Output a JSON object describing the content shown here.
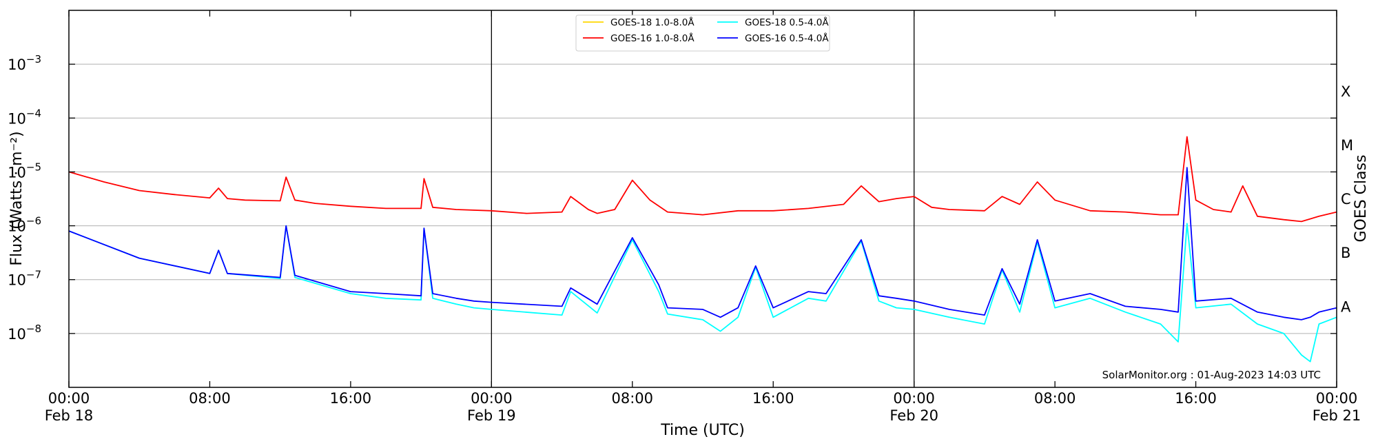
{
  "chart_data": {
    "type": "line",
    "xlabel": "Time (UTC)",
    "ylabel": "Flux (Watts · m⁻²)",
    "y2label": "GOES Class",
    "yscale": "log",
    "ylim": [
      1e-09,
      0.01
    ],
    "xlim": [
      "2023-02-18T00:00",
      "2023-02-21T00:00"
    ],
    "grid": "horizontal at decades",
    "legend_position": "top-center",
    "credit": "SolarMonitor.org : 01-Aug-2023 14:03 UTC",
    "x_ticks": [
      {
        "time": "2023-02-18T00:00",
        "label": "00:00",
        "sublabel": "Feb 18"
      },
      {
        "time": "2023-02-18T08:00",
        "label": "08:00",
        "sublabel": ""
      },
      {
        "time": "2023-02-18T16:00",
        "label": "16:00",
        "sublabel": ""
      },
      {
        "time": "2023-02-19T00:00",
        "label": "00:00",
        "sublabel": "Feb 19"
      },
      {
        "time": "2023-02-19T08:00",
        "label": "08:00",
        "sublabel": ""
      },
      {
        "time": "2023-02-19T16:00",
        "label": "16:00",
        "sublabel": ""
      },
      {
        "time": "2023-02-20T00:00",
        "label": "00:00",
        "sublabel": "Feb 20"
      },
      {
        "time": "2023-02-20T08:00",
        "label": "08:00",
        "sublabel": ""
      },
      {
        "time": "2023-02-20T16:00",
        "label": "16:00",
        "sublabel": ""
      },
      {
        "time": "2023-02-21T00:00",
        "label": "00:00",
        "sublabel": "Feb 21"
      }
    ],
    "y_ticks": [
      {
        "value": 1e-08,
        "base": "10",
        "exp": "−8"
      },
      {
        "value": 1e-07,
        "base": "10",
        "exp": "−7"
      },
      {
        "value": 1e-06,
        "base": "10",
        "exp": "−6"
      },
      {
        "value": 1e-05,
        "base": "10",
        "exp": "−5"
      },
      {
        "value": 0.0001,
        "base": "10",
        "exp": "−4"
      },
      {
        "value": 0.001,
        "base": "10",
        "exp": "−3"
      }
    ],
    "day_boundaries": [
      "2023-02-19T00:00",
      "2023-02-20T00:00"
    ],
    "goes_classes": [
      {
        "label": "A",
        "value": 3.2e-08
      },
      {
        "label": "B",
        "value": 3.2e-07
      },
      {
        "label": "C",
        "value": 3.2e-06
      },
      {
        "label": "M",
        "value": 3.2e-05
      },
      {
        "label": "X",
        "value": 0.00032
      }
    ],
    "series": [
      {
        "name": "GOES-18 1.0-8.0Å",
        "color": "#ffd700",
        "points": []
      },
      {
        "name": "GOES-18 0.5-4.0Å",
        "color": "#00ffff",
        "points": [
          [
            "2023-02-18T00:00",
            8e-07
          ],
          [
            "2023-02-18T04:00",
            2.5e-07
          ],
          [
            "2023-02-18T08:00",
            1.3e-07
          ],
          [
            "2023-02-18T08:30",
            3.5e-07
          ],
          [
            "2023-02-18T09:00",
            1.3e-07
          ],
          [
            "2023-02-18T12:00",
            1.05e-07
          ],
          [
            "2023-02-18T12:20",
            1e-06
          ],
          [
            "2023-02-18T12:50",
            1.1e-07
          ],
          [
            "2023-02-18T16:00",
            5.5e-08
          ],
          [
            "2023-02-18T18:00",
            4.5e-08
          ],
          [
            "2023-02-18T20:00",
            4.2e-08
          ],
          [
            "2023-02-18T20:10",
            9e-07
          ],
          [
            "2023-02-18T20:40",
            4.5e-08
          ],
          [
            "2023-02-18T22:00",
            3.5e-08
          ],
          [
            "2023-02-18T23:00",
            3e-08
          ],
          [
            "2023-02-19T00:00",
            2.8e-08
          ],
          [
            "2023-02-19T04:00",
            2.2e-08
          ],
          [
            "2023-02-19T04:30",
            6e-08
          ],
          [
            "2023-02-19T06:00",
            2.4e-08
          ],
          [
            "2023-02-19T08:00",
            5.5e-07
          ],
          [
            "2023-02-19T09:30",
            6e-08
          ],
          [
            "2023-02-19T10:00",
            2.3e-08
          ],
          [
            "2023-02-19T12:00",
            1.8e-08
          ],
          [
            "2023-02-19T13:00",
            1.1e-08
          ],
          [
            "2023-02-19T14:00",
            2e-08
          ],
          [
            "2023-02-19T15:00",
            1.7e-07
          ],
          [
            "2023-02-19T16:00",
            2e-08
          ],
          [
            "2023-02-19T18:00",
            4.5e-08
          ],
          [
            "2023-02-19T19:00",
            4e-08
          ],
          [
            "2023-02-19T21:00",
            5.2e-07
          ],
          [
            "2023-02-19T22:00",
            4e-08
          ],
          [
            "2023-02-19T23:00",
            3e-08
          ],
          [
            "2023-02-20T00:00",
            2.8e-08
          ],
          [
            "2023-02-20T02:00",
            2e-08
          ],
          [
            "2023-02-20T04:00",
            1.5e-08
          ],
          [
            "2023-02-20T05:00",
            1.5e-07
          ],
          [
            "2023-02-20T06:00",
            2.5e-08
          ],
          [
            "2023-02-20T07:00",
            5e-07
          ],
          [
            "2023-02-20T08:00",
            3e-08
          ],
          [
            "2023-02-20T10:00",
            4.5e-08
          ],
          [
            "2023-02-20T12:00",
            2.5e-08
          ],
          [
            "2023-02-20T14:00",
            1.5e-08
          ],
          [
            "2023-02-20T15:00",
            7e-09
          ],
          [
            "2023-02-20T15:30",
            1.1e-06
          ],
          [
            "2023-02-20T16:00",
            3e-08
          ],
          [
            "2023-02-20T18:00",
            3.5e-08
          ],
          [
            "2023-02-20T19:30",
            1.5e-08
          ],
          [
            "2023-02-20T21:00",
            1e-08
          ],
          [
            "2023-02-20T22:00",
            4e-09
          ],
          [
            "2023-02-20T22:30",
            3e-09
          ],
          [
            "2023-02-20T23:00",
            1.5e-08
          ],
          [
            "2023-02-21T00:00",
            2e-08
          ]
        ]
      },
      {
        "name": "GOES-16 1.0-8.0Å",
        "color": "#ff0000",
        "points": [
          [
            "2023-02-18T00:00",
            1e-05
          ],
          [
            "2023-02-18T02:00",
            6.5e-06
          ],
          [
            "2023-02-18T04:00",
            4.5e-06
          ],
          [
            "2023-02-18T06:00",
            3.8e-06
          ],
          [
            "2023-02-18T08:00",
            3.3e-06
          ],
          [
            "2023-02-18T08:30",
            5e-06
          ],
          [
            "2023-02-18T09:00",
            3.2e-06
          ],
          [
            "2023-02-18T10:00",
            3e-06
          ],
          [
            "2023-02-18T12:00",
            2.9e-06
          ],
          [
            "2023-02-18T12:20",
            8e-06
          ],
          [
            "2023-02-18T12:50",
            3e-06
          ],
          [
            "2023-02-18T14:00",
            2.6e-06
          ],
          [
            "2023-02-18T16:00",
            2.3e-06
          ],
          [
            "2023-02-18T18:00",
            2.1e-06
          ],
          [
            "2023-02-18T20:00",
            2.1e-06
          ],
          [
            "2023-02-18T20:10",
            7.5e-06
          ],
          [
            "2023-02-18T20:40",
            2.2e-06
          ],
          [
            "2023-02-18T22:00",
            2e-06
          ],
          [
            "2023-02-19T00:00",
            1.9e-06
          ],
          [
            "2023-02-19T02:00",
            1.7e-06
          ],
          [
            "2023-02-19T04:00",
            1.8e-06
          ],
          [
            "2023-02-19T04:30",
            3.5e-06
          ],
          [
            "2023-02-19T05:30",
            2e-06
          ],
          [
            "2023-02-19T06:00",
            1.7e-06
          ],
          [
            "2023-02-19T07:00",
            2e-06
          ],
          [
            "2023-02-19T08:00",
            7e-06
          ],
          [
            "2023-02-19T09:00",
            3e-06
          ],
          [
            "2023-02-19T10:00",
            1.8e-06
          ],
          [
            "2023-02-19T12:00",
            1.6e-06
          ],
          [
            "2023-02-19T14:00",
            1.9e-06
          ],
          [
            "2023-02-19T16:00",
            1.9e-06
          ],
          [
            "2023-02-19T18:00",
            2.1e-06
          ],
          [
            "2023-02-19T20:00",
            2.5e-06
          ],
          [
            "2023-02-19T21:00",
            5.5e-06
          ],
          [
            "2023-02-19T22:00",
            2.8e-06
          ],
          [
            "2023-02-19T23:00",
            3.2e-06
          ],
          [
            "2023-02-20T00:00",
            3.5e-06
          ],
          [
            "2023-02-20T01:00",
            2.2e-06
          ],
          [
            "2023-02-20T02:00",
            2e-06
          ],
          [
            "2023-02-20T04:00",
            1.9e-06
          ],
          [
            "2023-02-20T05:00",
            3.5e-06
          ],
          [
            "2023-02-20T06:00",
            2.5e-06
          ],
          [
            "2023-02-20T07:00",
            6.5e-06
          ],
          [
            "2023-02-20T08:00",
            3e-06
          ],
          [
            "2023-02-20T10:00",
            1.9e-06
          ],
          [
            "2023-02-20T12:00",
            1.8e-06
          ],
          [
            "2023-02-20T14:00",
            1.6e-06
          ],
          [
            "2023-02-20T15:00",
            1.6e-06
          ],
          [
            "2023-02-20T15:30",
            4.5e-05
          ],
          [
            "2023-02-20T16:00",
            3e-06
          ],
          [
            "2023-02-20T17:00",
            2e-06
          ],
          [
            "2023-02-20T18:00",
            1.8e-06
          ],
          [
            "2023-02-20T18:40",
            5.5e-06
          ],
          [
            "2023-02-20T19:30",
            1.5e-06
          ],
          [
            "2023-02-20T21:00",
            1.3e-06
          ],
          [
            "2023-02-20T22:00",
            1.2e-06
          ],
          [
            "2023-02-20T23:00",
            1.5e-06
          ],
          [
            "2023-02-21T00:00",
            1.8e-06
          ]
        ]
      },
      {
        "name": "GOES-16 0.5-4.0Å",
        "color": "#0000ff",
        "points": [
          [
            "2023-02-18T00:00",
            8e-07
          ],
          [
            "2023-02-18T04:00",
            2.5e-07
          ],
          [
            "2023-02-18T08:00",
            1.3e-07
          ],
          [
            "2023-02-18T08:30",
            3.5e-07
          ],
          [
            "2023-02-18T09:00",
            1.3e-07
          ],
          [
            "2023-02-18T12:00",
            1.1e-07
          ],
          [
            "2023-02-18T12:20",
            1e-06
          ],
          [
            "2023-02-18T12:50",
            1.2e-07
          ],
          [
            "2023-02-18T16:00",
            6e-08
          ],
          [
            "2023-02-18T18:00",
            5.5e-08
          ],
          [
            "2023-02-18T20:00",
            5e-08
          ],
          [
            "2023-02-18T20:10",
            9e-07
          ],
          [
            "2023-02-18T20:40",
            5.5e-08
          ],
          [
            "2023-02-18T22:00",
            4.5e-08
          ],
          [
            "2023-02-18T23:00",
            4e-08
          ],
          [
            "2023-02-19T00:00",
            3.8e-08
          ],
          [
            "2023-02-19T04:00",
            3.2e-08
          ],
          [
            "2023-02-19T04:30",
            7e-08
          ],
          [
            "2023-02-19T06:00",
            3.5e-08
          ],
          [
            "2023-02-19T08:00",
            6e-07
          ],
          [
            "2023-02-19T09:30",
            8e-08
          ],
          [
            "2023-02-19T10:00",
            3e-08
          ],
          [
            "2023-02-19T12:00",
            2.8e-08
          ],
          [
            "2023-02-19T13:00",
            2e-08
          ],
          [
            "2023-02-19T14:00",
            3e-08
          ],
          [
            "2023-02-19T15:00",
            1.8e-07
          ],
          [
            "2023-02-19T16:00",
            3e-08
          ],
          [
            "2023-02-19T18:00",
            6e-08
          ],
          [
            "2023-02-19T19:00",
            5.5e-08
          ],
          [
            "2023-02-19T21:00",
            5.5e-07
          ],
          [
            "2023-02-19T22:00",
            5e-08
          ],
          [
            "2023-02-19T23:00",
            4.5e-08
          ],
          [
            "2023-02-20T00:00",
            4e-08
          ],
          [
            "2023-02-20T02:00",
            2.8e-08
          ],
          [
            "2023-02-20T04:00",
            2.2e-08
          ],
          [
            "2023-02-20T05:00",
            1.6e-07
          ],
          [
            "2023-02-20T06:00",
            3.5e-08
          ],
          [
            "2023-02-20T07:00",
            5.5e-07
          ],
          [
            "2023-02-20T08:00",
            4e-08
          ],
          [
            "2023-02-20T10:00",
            5.5e-08
          ],
          [
            "2023-02-20T12:00",
            3.2e-08
          ],
          [
            "2023-02-20T14:00",
            2.8e-08
          ],
          [
            "2023-02-20T15:00",
            2.5e-08
          ],
          [
            "2023-02-20T15:30",
            1.2e-05
          ],
          [
            "2023-02-20T16:00",
            4e-08
          ],
          [
            "2023-02-20T18:00",
            4.5e-08
          ],
          [
            "2023-02-20T19:30",
            2.5e-08
          ],
          [
            "2023-02-20T21:00",
            2e-08
          ],
          [
            "2023-02-20T22:00",
            1.8e-08
          ],
          [
            "2023-02-20T22:30",
            2e-08
          ],
          [
            "2023-02-20T23:00",
            2.5e-08
          ],
          [
            "2023-02-21T00:00",
            3e-08
          ]
        ]
      }
    ]
  }
}
